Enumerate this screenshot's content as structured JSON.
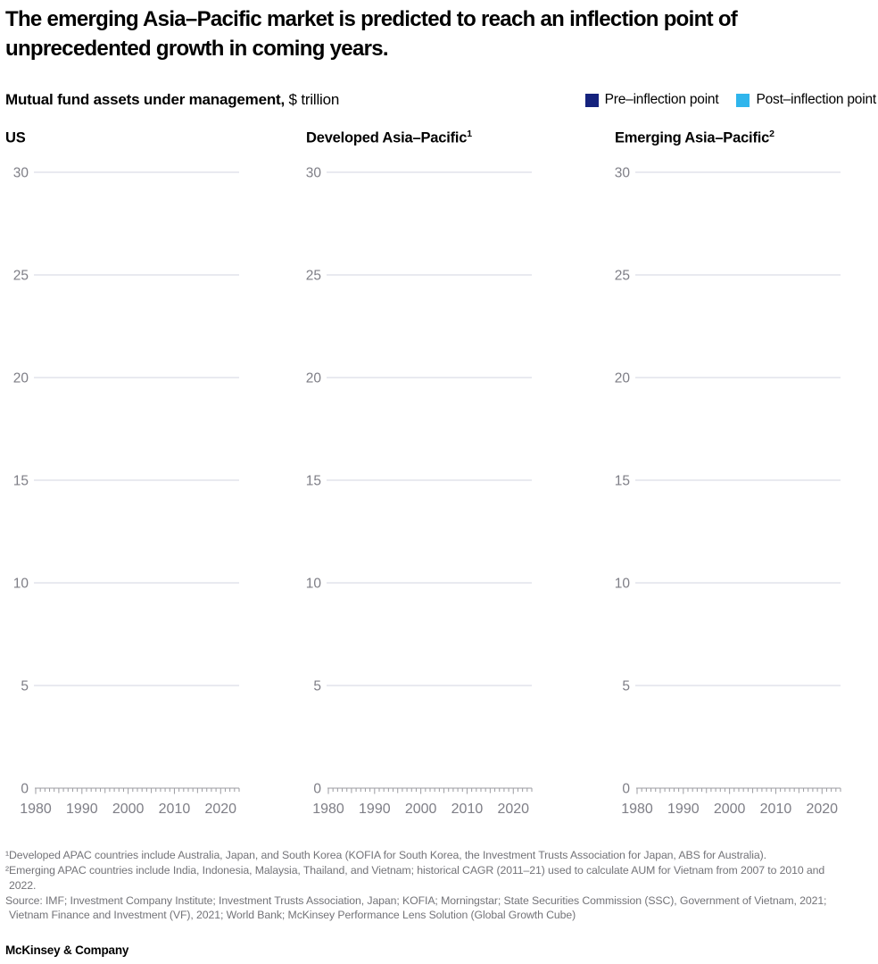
{
  "title": "The emerging Asia–Pacific market is predicted to reach an inflection point of unprecedented growth in coming years.",
  "subtitle": {
    "bold": "Mutual fund assets under management,",
    "unit": " $ trillion"
  },
  "legend": {
    "items": [
      {
        "label": "Pre–inflection point",
        "color": "#15227d"
      },
      {
        "label": "Post–inflection point",
        "color": "#2fb5ec"
      }
    ]
  },
  "panels": [
    {
      "label": "US",
      "sup": ""
    },
    {
      "label": "Developed Asia–Pacific",
      "sup": "1"
    },
    {
      "label": "Emerging Asia–Pacific",
      "sup": "2"
    }
  ],
  "chart_data": {
    "type": "line",
    "title": "Mutual fund assets under management, $ trillion",
    "panels": [
      "US",
      "Developed Asia–Pacific¹",
      "Emerging Asia–Pacific²"
    ],
    "ylim": [
      0,
      30
    ],
    "y_ticks": [
      0,
      5,
      10,
      15,
      20,
      25,
      30
    ],
    "x_range": [
      1980,
      2024
    ],
    "x_ticks": [
      1980,
      1990,
      2000,
      2010,
      2020
    ],
    "grid": true,
    "legend": [
      "Pre–inflection point",
      "Post–inflection point"
    ],
    "legend_position": "top-right",
    "series": [],
    "note": "Plot areas are empty in the screenshot; gridlines and axes only, no data series rendered.",
    "colors": {
      "gridline": "#dcdee6",
      "axis": "#9b9ba1",
      "tick_label": "#7e7e86"
    }
  },
  "footnotes": [
    "¹Developed APAC countries include Australia, Japan, and South Korea (KOFIA for South Korea, the Investment Trusts Association for Japan, ABS for Australia).",
    "²Emerging APAC countries include India, Indonesia, Malaysia, Thailand, and Vietnam; historical CAGR (2011–21) used to calculate AUM for Vietnam from 2007 to 2010 and 2022.",
    "Source: IMF; Investment Company Institute; Investment Trusts Association, Japan; KOFIA; Morningstar; State Securities Commission (SSC), Government of Vietnam, 2021; Vietnam Finance and Investment (VF), 2021; World Bank; McKinsey Performance Lens Solution (Global Growth Cube)"
  ],
  "footer": "McKinsey & Company"
}
